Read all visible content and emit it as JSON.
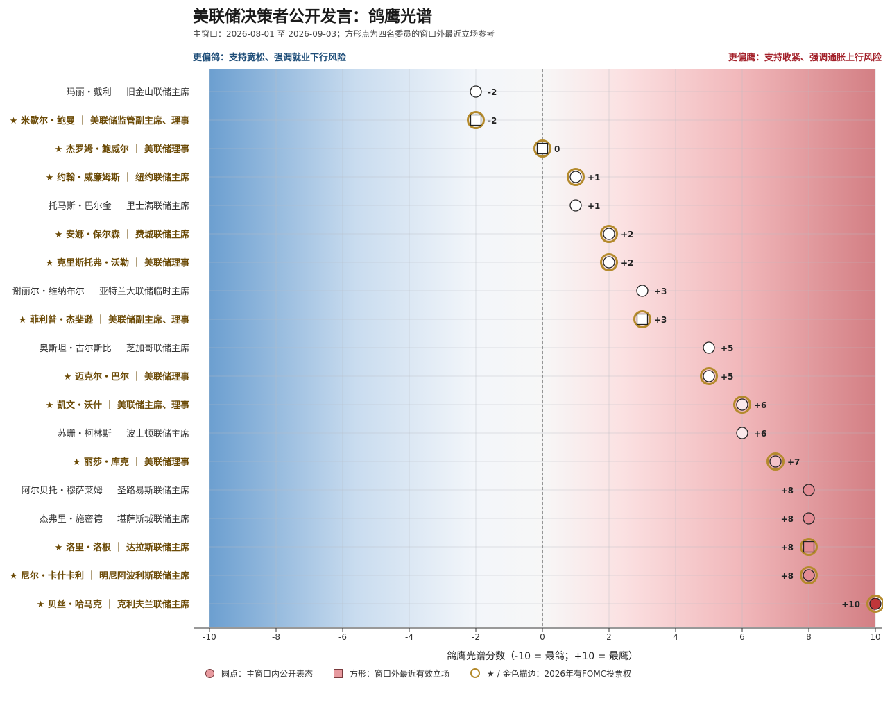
{
  "header": {
    "title": "美联储决策者公开发言：鸽鹰光谱",
    "subtitle": "主窗口：2026-08-01 至 2026-09-03；方形点为四名委员的窗口外最近立场参考",
    "dovish_note": "更偏鸽：支持宽松、强调就业下行风险",
    "hawkish_note": "更偏鹰：支持收紧、强调通胀上行风险"
  },
  "legend": {
    "circle_label": "圆点：主窗口内公开表态",
    "square_label": "方形：窗口外最近有效立场",
    "gold_label": "★ / 金色描边：2026年有FOMC投票权"
  },
  "colors": {
    "dovish": "#6c9fd0",
    "hawkish": "#d37f84",
    "gold": "#b48a2c",
    "voter_label": "#6b4a06",
    "nonvoter_label": "#333333"
  },
  "chart_data": {
    "type": "scatter",
    "xlabel": "鸽鹰光谱分数（-10 = 最鸽；+10 = 最鹰）",
    "ylabel": "",
    "xlim": [
      -10,
      10
    ],
    "xticks": [
      -10,
      -8,
      -6,
      -4,
      -2,
      0,
      2,
      4,
      6,
      8,
      10
    ],
    "grid": true,
    "points": [
      {
        "label": "玛丽・戴利 ｜ 旧金山联储主席",
        "score": -2,
        "shape": "circle",
        "voter": false
      },
      {
        "label": "★ 米歇尔・鲍曼 ｜ 美联储监管副主席、理事",
        "score": -2,
        "shape": "square",
        "voter": true
      },
      {
        "label": "★ 杰罗姆・鲍威尔 ｜ 美联储理事",
        "score": 0,
        "shape": "square",
        "voter": true
      },
      {
        "label": "★ 约翰・威廉姆斯 ｜ 纽约联储主席",
        "score": 1,
        "shape": "circle",
        "voter": true
      },
      {
        "label": "托马斯・巴尔金 ｜ 里士满联储主席",
        "score": 1,
        "shape": "circle",
        "voter": false
      },
      {
        "label": "★ 安娜・保尔森 ｜ 费城联储主席",
        "score": 2,
        "shape": "circle",
        "voter": true
      },
      {
        "label": "★ 克里斯托弗・沃勒 ｜ 美联储理事",
        "score": 2,
        "shape": "circle",
        "voter": true
      },
      {
        "label": "谢丽尔・维纳布尔 ｜ 亚特兰大联储临时主席",
        "score": 3,
        "shape": "circle",
        "voter": false
      },
      {
        "label": "★ 菲利普・杰斐逊 ｜ 美联储副主席、理事",
        "score": 3,
        "shape": "square",
        "voter": true
      },
      {
        "label": "奥斯坦・古尔斯比 ｜ 芝加哥联储主席",
        "score": 5,
        "shape": "circle",
        "voter": false
      },
      {
        "label": "★ 迈克尔・巴尔 ｜ 美联储理事",
        "score": 5,
        "shape": "circle",
        "voter": true
      },
      {
        "label": "★ 凯文・沃什 ｜ 美联储主席、理事",
        "score": 6,
        "shape": "circle",
        "voter": true
      },
      {
        "label": "苏珊・柯林斯 ｜ 波士顿联储主席",
        "score": 6,
        "shape": "circle",
        "voter": false
      },
      {
        "label": "★ 丽莎・库克 ｜ 美联储理事",
        "score": 7,
        "shape": "circle",
        "voter": true
      },
      {
        "label": "阿尔贝托・穆萨莱姆 ｜ 圣路易斯联储主席",
        "score": 8,
        "shape": "circle",
        "voter": false
      },
      {
        "label": "杰弗里・施密德 ｜ 堪萨斯城联储主席",
        "score": 8,
        "shape": "circle",
        "voter": false
      },
      {
        "label": "★ 洛里・洛根 ｜ 达拉斯联储主席",
        "score": 8,
        "shape": "square",
        "voter": true
      },
      {
        "label": "★ 尼尔・卡什卡利 ｜ 明尼阿波利斯联储主席",
        "score": 8,
        "shape": "circle",
        "voter": true
      },
      {
        "label": "★ 贝丝・哈马克 ｜ 克利夫兰联储主席",
        "score": 10,
        "shape": "circle",
        "voter": true
      }
    ]
  }
}
